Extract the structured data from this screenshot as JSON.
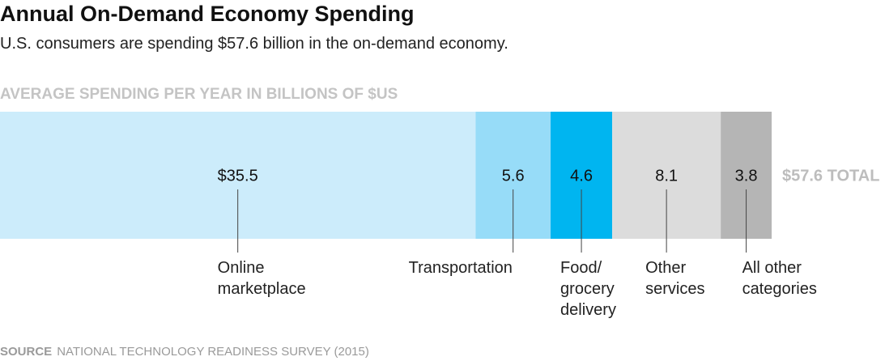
{
  "chart_data": {
    "type": "stacked-bar",
    "title": "Annual On-Demand Economy Spending",
    "subtitle": "U.S. consumers are spending $57.6 billion in the on-demand economy.",
    "axis_label": "AVERAGE SPENDING PER YEAR IN BILLIONS OF $US",
    "categories": [
      "Online marketplace",
      "Transportation",
      "Food/ grocery delivery",
      "Other services",
      "All other categories"
    ],
    "values": [
      35.5,
      5.6,
      4.6,
      8.1,
      3.8
    ],
    "value_labels": [
      "$35.5",
      "5.6",
      "4.6",
      "8.1",
      "3.8"
    ],
    "colors": [
      "#ccecfb",
      "#97dcf8",
      "#00b5f0",
      "#dcdcdc",
      "#b5b5b5"
    ],
    "total": {
      "value": 57.6,
      "label": "$57.6 TOTAL"
    },
    "source_label": "SOURCE",
    "source": "NATIONAL TECHNOLOGY READINESS SURVEY (2015)"
  }
}
